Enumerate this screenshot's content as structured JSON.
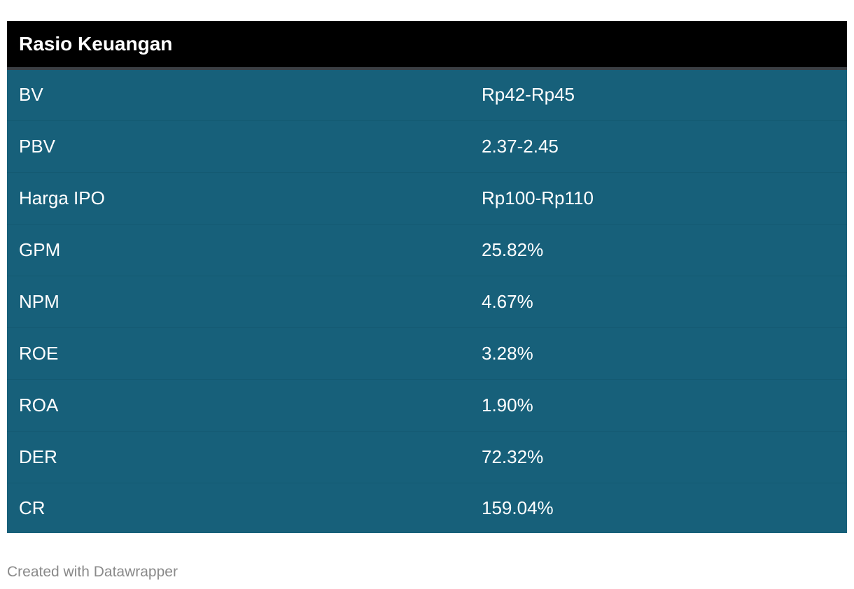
{
  "chart_data": {
    "type": "table",
    "header": "Rasio Keuangan",
    "rows": [
      {
        "label": "BV",
        "value": "Rp42-Rp45"
      },
      {
        "label": "PBV",
        "value": "2.37-2.45"
      },
      {
        "label": "Harga IPO",
        "value": "Rp100-Rp110"
      },
      {
        "label": "GPM",
        "value": "25.82%"
      },
      {
        "label": "NPM",
        "value": "4.67%"
      },
      {
        "label": "ROE",
        "value": "3.28%"
      },
      {
        "label": "ROA",
        "value": "1.90%"
      },
      {
        "label": "DER",
        "value": "72.32%"
      },
      {
        "label": "CR",
        "value": "159.04%"
      }
    ]
  },
  "footer": "Created with Datawrapper",
  "colors": {
    "header_bg": "#000000",
    "row_bg": "#17607a",
    "text": "#ffffff",
    "footer_text": "#8a8a8a"
  }
}
